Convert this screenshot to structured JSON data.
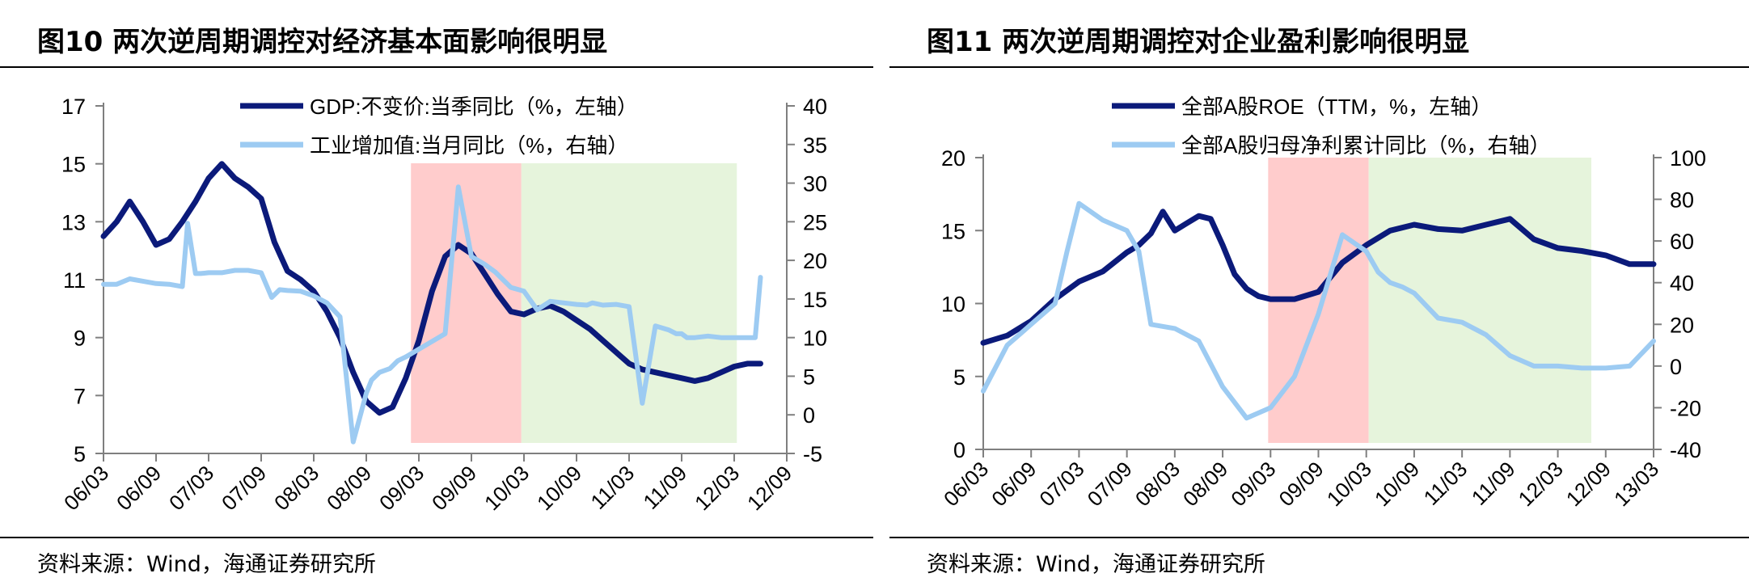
{
  "chart_data": [
    {
      "type": "line",
      "title": "图10 两次逆周期调控对经济基本面影响很明显",
      "source": "资料来源：Wind，海通证券研究所",
      "x_ticks": [
        "06/03",
        "06/09",
        "07/03",
        "07/09",
        "08/03",
        "08/09",
        "09/03",
        "09/09",
        "10/03",
        "10/09",
        "11/03",
        "11/09",
        "12/03",
        "12/09"
      ],
      "y_left": {
        "min": 5,
        "max": 17,
        "ticks": [
          5,
          7,
          9,
          11,
          13,
          15,
          17
        ]
      },
      "y_right": {
        "min": -5,
        "max": 40,
        "ticks": [
          -5,
          0,
          5,
          10,
          15,
          20,
          25,
          30,
          35,
          40
        ]
      },
      "shaded_regions": [
        {
          "from": 5.85,
          "to": 7.95,
          "color": "#ffcccc"
        },
        {
          "from": 7.95,
          "to": 12.05,
          "color": "#e6f4dc"
        }
      ],
      "legend_placement": "top",
      "series": [
        {
          "name": "GDP:不变价:当季同比（%，左轴）",
          "axis": "left",
          "color": "#0b1a7a",
          "x": [
            0,
            0.25,
            0.5,
            0.75,
            1,
            1.25,
            1.5,
            1.75,
            2,
            2.25,
            2.5,
            2.75,
            3,
            3.25,
            3.5,
            3.75,
            4,
            4.25,
            4.5,
            4.75,
            5,
            5.25,
            5.5,
            5.75,
            6,
            6.25,
            6.5,
            6.75,
            7,
            7.25,
            7.5,
            7.75,
            8,
            8.25,
            8.5,
            8.75,
            9,
            9.25,
            9.5,
            9.75,
            10,
            10.25,
            10.5,
            10.75,
            11,
            11.25,
            11.5,
            11.75,
            12,
            12.25,
            12.5
          ],
          "values": [
            12.5,
            13.0,
            13.7,
            13.0,
            12.2,
            12.4,
            13.0,
            13.7,
            14.5,
            15.0,
            14.5,
            14.2,
            13.8,
            12.3,
            11.3,
            11.0,
            10.6,
            9.9,
            9.0,
            7.8,
            6.8,
            6.4,
            6.6,
            7.6,
            8.9,
            10.6,
            11.8,
            12.2,
            11.9,
            11.2,
            10.5,
            9.9,
            9.8,
            10.0,
            10.1,
            9.9,
            9.6,
            9.3,
            8.9,
            8.5,
            8.1,
            7.9,
            7.8,
            7.7,
            7.6,
            7.5,
            7.6,
            7.8,
            8.0,
            8.1,
            8.1
          ]
        },
        {
          "name": "工业增加值:当月同比（%，右轴）",
          "axis": "right",
          "color": "#9dcbf2",
          "x": [
            0,
            0.25,
            0.5,
            0.75,
            1,
            1.25,
            1.5,
            1.6,
            1.75,
            1.85,
            2,
            2.25,
            2.5,
            2.75,
            3,
            3.2,
            3.35,
            3.5,
            3.75,
            4,
            4.25,
            4.5,
            4.75,
            5,
            5.1,
            5.25,
            5.45,
            5.6,
            5.75,
            6.0,
            6.25,
            6.5,
            6.75,
            7.0,
            7.25,
            7.45,
            7.6,
            7.75,
            8,
            8.25,
            8.5,
            8.75,
            9,
            9.2,
            9.3,
            9.5,
            9.75,
            10,
            10.25,
            10.5,
            10.75,
            10.9,
            11,
            11.1,
            11.25,
            11.5,
            11.75,
            12,
            12.25,
            12.4,
            12.5
          ],
          "values": [
            16.9,
            16.9,
            17.6,
            17.3,
            17.0,
            16.9,
            16.6,
            24.8,
            18.3,
            18.3,
            18.4,
            18.4,
            18.7,
            18.7,
            18.4,
            15.2,
            16.2,
            16.1,
            16.0,
            15.4,
            14.5,
            12.7,
            -3.5,
            2.8,
            4.5,
            5.5,
            6.0,
            7.0,
            7.5,
            8.5,
            9.5,
            10.5,
            29.5,
            20.5,
            19.5,
            18.5,
            17.5,
            16.5,
            16.0,
            13.6,
            14.7,
            14.5,
            14.3,
            14.2,
            14.5,
            14.2,
            14.3,
            14.0,
            1.5,
            11.5,
            11.0,
            10.5,
            10.5,
            10.0,
            10.0,
            10.2,
            10.0,
            10.0,
            10.0,
            10.0,
            17.8
          ]
        }
      ]
    },
    {
      "type": "line",
      "title": "图11 两次逆周期调控对企业盈利影响很明显",
      "source": "资料来源：Wind，海通证券研究所",
      "x_ticks": [
        "06/03",
        "06/09",
        "07/03",
        "07/09",
        "08/03",
        "08/09",
        "09/03",
        "09/09",
        "10/03",
        "10/09",
        "11/03",
        "11/09",
        "12/03",
        "12/09",
        "13/03"
      ],
      "y_left": {
        "min": 0,
        "max": 20,
        "ticks": [
          0,
          5,
          10,
          15,
          20
        ]
      },
      "y_right": {
        "min": -40,
        "max": 100,
        "ticks": [
          -40,
          -20,
          0,
          20,
          40,
          60,
          80,
          100
        ]
      },
      "shaded_regions": [
        {
          "from": 5.95,
          "to": 8.05,
          "color": "#ffcccc"
        },
        {
          "from": 8.05,
          "to": 12.7,
          "color": "#e6f4dc"
        }
      ],
      "legend_placement": "top",
      "series": [
        {
          "name": "全部A股ROE（TTM，%，左轴）",
          "axis": "left",
          "color": "#0b1a7a",
          "x": [
            0,
            0.5,
            1,
            1.5,
            2,
            2.5,
            3,
            3.25,
            3.5,
            3.75,
            4,
            4.25,
            4.5,
            4.75,
            5,
            5.25,
            5.5,
            5.75,
            6,
            6.5,
            7,
            7.5,
            8,
            8.5,
            9,
            9.5,
            10,
            10.5,
            11,
            11.5,
            12,
            12.5,
            13,
            13.5,
            14
          ],
          "values": [
            7.3,
            7.8,
            8.8,
            10.3,
            11.5,
            12.2,
            13.5,
            14.0,
            14.8,
            16.3,
            15.0,
            15.5,
            16.0,
            15.8,
            14.0,
            12.0,
            11.0,
            10.5,
            10.3,
            10.3,
            10.8,
            12.8,
            14.0,
            15.0,
            15.4,
            15.1,
            15.0,
            15.4,
            15.8,
            14.4,
            13.8,
            13.6,
            13.3,
            12.7,
            12.7
          ]
        },
        {
          "name": "全部A股归母净利累计同比（%，右轴）",
          "axis": "right",
          "color": "#9dcbf2",
          "x": [
            0,
            0.5,
            1,
            1.5,
            1.75,
            2,
            2.5,
            3,
            3.25,
            3.5,
            4,
            4.5,
            5,
            5.5,
            6,
            6.5,
            7,
            7.5,
            8,
            8.25,
            8.5,
            8.75,
            9,
            9.5,
            10,
            10.5,
            11,
            11.5,
            12,
            12.5,
            13,
            13.5,
            14
          ],
          "values": [
            -12.0,
            10.0,
            20.0,
            30.0,
            55.0,
            78.0,
            70.0,
            65.0,
            55.0,
            20.0,
            18.0,
            12.0,
            -10.0,
            -25.0,
            -20.0,
            -5.0,
            25.0,
            63.0,
            55.0,
            45.0,
            40.0,
            38.0,
            35.0,
            23.0,
            21.0,
            15.0,
            5.0,
            0.0,
            0.0,
            -1.0,
            -1.0,
            0.0,
            12.0
          ]
        }
      ]
    }
  ]
}
